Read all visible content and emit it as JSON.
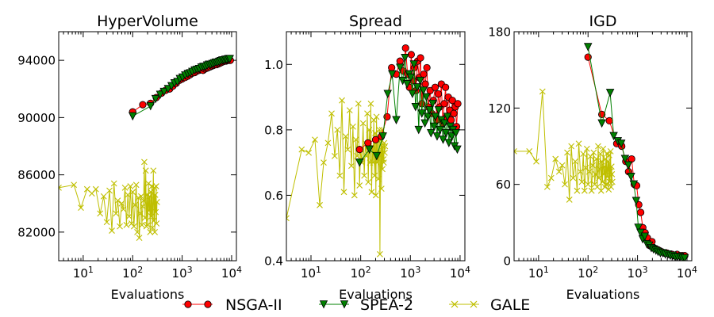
{
  "chart_data": [
    {
      "type": "line",
      "title": "HyperVolume",
      "xlabel": "Evaluations",
      "ylabel": "",
      "xscale": "log",
      "xlim": [
        3.2,
        12500
      ],
      "ylim": [
        80000,
        96000
      ],
      "xtick_exponents": [
        1,
        2,
        3,
        4
      ],
      "yticks": [
        82000,
        86000,
        90000,
        94000
      ],
      "ytick_labels": [
        "82000",
        "86000",
        "90000",
        "94000"
      ],
      "grid": false,
      "series": [
        {
          "name": "NSGA-II",
          "x": [
            100,
            160,
            230,
            300,
            380,
            460,
            560,
            650,
            760,
            880,
            1000,
            1150,
            1300,
            1450,
            1600,
            1800,
            2000,
            2200,
            2400,
            2650,
            2900,
            3150,
            3400,
            3700,
            4000,
            4300,
            4650,
            5000,
            5400,
            5800,
            6200,
            6700,
            7200,
            7700,
            8200,
            8800,
            9400
          ],
          "y": [
            90400,
            90900,
            91000,
            91400,
            91700,
            91900,
            92000,
            92200,
            92400,
            92600,
            92700,
            92800,
            92900,
            93000,
            93100,
            93150,
            93250,
            93300,
            93350,
            93300,
            93400,
            93450,
            93500,
            93550,
            93600,
            93650,
            93700,
            93700,
            93750,
            93800,
            93850,
            93900,
            93950,
            93950,
            94000,
            94000,
            94000
          ]
        },
        {
          "name": "SPEA-2",
          "x": [
            100,
            230,
            290,
            360,
            430,
            520,
            610,
            700,
            800,
            900,
            1020,
            1150,
            1300,
            1450,
            1600,
            1800,
            2000,
            2200,
            2450,
            2700,
            2950,
            3200,
            3500,
            3800,
            4100,
            4450,
            4800,
            5200,
            5600,
            6000,
            6500,
            7000,
            7500,
            8000,
            8600,
            9200
          ],
          "y": [
            90100,
            90800,
            91300,
            91600,
            91800,
            92000,
            92200,
            92400,
            92500,
            92700,
            92800,
            92950,
            93050,
            93100,
            93200,
            93300,
            93350,
            93400,
            93500,
            93550,
            93550,
            93650,
            93700,
            93700,
            93750,
            93800,
            93850,
            93850,
            93900,
            93950,
            94000,
            94000,
            94050,
            94050,
            94100,
            94100
          ]
        },
        {
          "name": "GALE",
          "x": [
            3.2,
            6.5,
            9,
            12,
            15,
            18,
            22,
            26,
            30,
            34,
            38,
            42,
            46,
            50,
            55,
            60,
            65,
            70,
            75,
            80,
            85,
            90,
            95,
            100,
            106,
            112,
            118,
            124,
            130,
            136,
            142,
            148,
            154,
            160,
            166,
            172,
            178,
            184,
            190,
            196,
            202,
            208,
            214,
            220,
            226,
            232,
            238,
            244,
            250,
            256,
            262,
            268,
            274,
            280,
            286,
            292,
            298,
            304,
            310
          ],
          "y": [
            85100,
            85300,
            83700,
            85000,
            84700,
            85000,
            83300,
            84500,
            82700,
            84900,
            82100,
            85400,
            83300,
            84200,
            82400,
            84000,
            83600,
            85100,
            82500,
            84600,
            83100,
            85200,
            82600,
            84800,
            82400,
            83900,
            85300,
            82000,
            84400,
            81600,
            83300,
            84500,
            82500,
            83800,
            84200,
            86900,
            83000,
            86300,
            82400,
            84600,
            82500,
            85400,
            83500,
            84500,
            82000,
            84800,
            83100,
            85200,
            82300,
            84000,
            86300,
            82800,
            85100,
            82000,
            84600,
            83400,
            85200,
            82600,
            84100
          ]
        }
      ]
    },
    {
      "type": "line",
      "title": "Spread",
      "xlabel": "Evaluations",
      "ylabel": "",
      "xscale": "log",
      "xlim": [
        3.2,
        12500
      ],
      "ylim": [
        0.4,
        1.1
      ],
      "xtick_exponents": [
        1,
        2,
        3,
        4
      ],
      "yticks": [
        0.4,
        0.6,
        0.8,
        1.0
      ],
      "ytick_labels": [
        "0.4",
        "0.6",
        "0.8",
        "1.0"
      ],
      "grid": false,
      "series": [
        {
          "name": "NSGA-II",
          "x": [
            95,
            140,
            200,
            260,
            340,
            420,
            520,
            620,
            720,
            800,
            880,
            960,
            1040,
            1120,
            1200,
            1300,
            1400,
            1500,
            1600,
            1700,
            1850,
            2000,
            2150,
            2300,
            2500,
            2700,
            2900,
            3150,
            3400,
            3650,
            3900,
            4200,
            4500,
            4800,
            5100,
            5400,
            5800,
            6200,
            6600,
            7000,
            7500,
            8000,
            8500,
            9000
          ],
          "y": [
            0.74,
            0.76,
            0.77,
            0.78,
            0.84,
            0.99,
            0.97,
            1.01,
            0.98,
            1.05,
            0.97,
            0.93,
            1.03,
            0.95,
            0.99,
            0.92,
            1.01,
            0.96,
            1.02,
            0.88,
            0.97,
            0.94,
            0.99,
            0.87,
            0.92,
            0.85,
            0.89,
            0.93,
            0.83,
            0.91,
            0.87,
            0.94,
            0.82,
            0.88,
            0.93,
            0.84,
            0.9,
            0.86,
            0.83,
            0.89,
            0.85,
            0.87,
            0.81,
            0.88
          ]
        },
        {
          "name": "SPEA-2",
          "x": [
            95,
            150,
            210,
            280,
            350,
            430,
            520,
            620,
            700,
            780,
            860,
            940,
            1020,
            1100,
            1180,
            1270,
            1370,
            1470,
            1580,
            1700,
            1830,
            1960,
            2100,
            2260,
            2430,
            2600,
            2800,
            3000,
            3200,
            3450,
            3700,
            3950,
            4250,
            4550,
            4850,
            5200,
            5550,
            5950,
            6350,
            6800,
            7250,
            7750,
            8250,
            8800
          ],
          "y": [
            0.7,
            0.74,
            0.72,
            0.78,
            0.91,
            0.97,
            0.83,
            0.99,
            0.95,
            1.02,
            0.94,
            0.97,
            0.96,
            0.91,
            1.0,
            0.87,
            0.93,
            0.8,
            0.95,
            0.85,
            0.92,
            0.82,
            0.9,
            0.84,
            0.86,
            0.79,
            0.88,
            0.81,
            0.84,
            0.78,
            0.86,
            0.8,
            0.83,
            0.77,
            0.82,
            0.79,
            0.84,
            0.76,
            0.81,
            0.78,
            0.8,
            0.75,
            0.79,
            0.74
          ]
        },
        {
          "name": "GALE",
          "x": [
            3.2,
            6.5,
            9,
            12,
            15,
            18,
            22,
            26,
            30,
            34,
            38,
            42,
            46,
            50,
            55,
            60,
            65,
            70,
            75,
            80,
            85,
            90,
            95,
            100,
            106,
            112,
            118,
            124,
            130,
            136,
            142,
            148,
            154,
            160,
            166,
            172,
            178,
            184,
            190,
            196,
            202,
            208,
            214,
            220,
            226,
            232,
            238,
            244,
            250,
            256,
            262,
            268,
            274,
            280,
            286,
            292,
            298,
            304,
            310
          ],
          "y": [
            0.53,
            0.74,
            0.73,
            0.77,
            0.57,
            0.7,
            0.76,
            0.85,
            0.72,
            0.8,
            0.66,
            0.89,
            0.61,
            0.78,
            0.74,
            0.86,
            0.69,
            0.81,
            0.6,
            0.77,
            0.72,
            0.88,
            0.63,
            0.74,
            0.7,
            0.82,
            0.66,
            0.76,
            0.72,
            0.85,
            0.64,
            0.8,
            0.7,
            0.88,
            0.61,
            0.75,
            0.7,
            0.83,
            0.66,
            0.79,
            0.6,
            0.84,
            0.7,
            0.77,
            0.65,
            0.73,
            0.8,
            0.42,
            0.72,
            0.77,
            0.62,
            0.8,
            0.68,
            0.75,
            0.71,
            0.7,
            0.76,
            0.73,
            0.75
          ]
        }
      ]
    },
    {
      "type": "line",
      "title": "IGD",
      "xlabel": "Evaluations",
      "ylabel": "",
      "xscale": "log",
      "xlim": [
        3.2,
        12500
      ],
      "ylim": [
        0,
        180
      ],
      "xtick_exponents": [
        1,
        2,
        3,
        4
      ],
      "yticks": [
        0,
        60,
        120,
        180
      ],
      "ytick_labels": [
        "0",
        "60",
        "120",
        "180"
      ],
      "grid": false,
      "series": [
        {
          "name": "NSGA-II",
          "x": [
            100,
            190,
            270,
            380,
            480,
            580,
            660,
            760,
            860,
            960,
            1060,
            1160,
            1280,
            1420,
            1580,
            1760,
            1960,
            2180,
            2450,
            2750,
            3100,
            3500,
            3950,
            4450,
            5000,
            5600,
            6300,
            7100,
            8000,
            9000
          ],
          "y": [
            160,
            115,
            110,
            92,
            90,
            78,
            70,
            80,
            60,
            59,
            44,
            38,
            26,
            22,
            18,
            12,
            15,
            10,
            9,
            8,
            7,
            6,
            6,
            5,
            5,
            4,
            5,
            4,
            4,
            4
          ]
        },
        {
          "name": "SPEA-2",
          "x": [
            100,
            190,
            280,
            330,
            400,
            470,
            560,
            650,
            740,
            840,
            940,
            1040,
            1150,
            1270,
            1400,
            1550,
            1720,
            1900,
            2100,
            2350,
            2600,
            2900,
            3250,
            3650,
            4100,
            4600,
            5150,
            5750,
            6450,
            7250,
            8100,
            9000
          ],
          "y": [
            168,
            108,
            132,
            98,
            94,
            92,
            80,
            75,
            66,
            60,
            47,
            26,
            22,
            17,
            19,
            13,
            12,
            10,
            9,
            8,
            7,
            6,
            6,
            5,
            5,
            4,
            4,
            3,
            3,
            3,
            2,
            2
          ]
        },
        {
          "name": "GALE",
          "x": [
            3.2,
            6.5,
            9,
            12,
            15,
            18,
            22,
            26,
            30,
            34,
            38,
            42,
            46,
            50,
            55,
            60,
            65,
            70,
            75,
            80,
            85,
            90,
            95,
            100,
            106,
            112,
            118,
            124,
            130,
            136,
            142,
            148,
            154,
            160,
            166,
            172,
            178,
            184,
            190,
            196,
            202,
            208,
            214,
            220,
            226,
            232,
            238,
            244,
            250,
            256,
            262,
            268,
            274,
            280,
            286,
            292,
            298,
            304,
            310
          ],
          "y": [
            86,
            86,
            78,
            133,
            58,
            65,
            80,
            70,
            75,
            60,
            85,
            48,
            90,
            65,
            78,
            55,
            92,
            70,
            62,
            84,
            55,
            73,
            88,
            60,
            70,
            82,
            55,
            75,
            85,
            60,
            68,
            80,
            58,
            90,
            65,
            72,
            84,
            55,
            78,
            62,
            88,
            68,
            74,
            58,
            80,
            60,
            84,
            66,
            72,
            78,
            56,
            83,
            62,
            70,
            86,
            58,
            74,
            68,
            62
          ]
        }
      ]
    }
  ],
  "legend": {
    "placement": "bottom-center",
    "entries": [
      {
        "label": "NSGA-II",
        "marker": "circle",
        "line_color": "#ff0000",
        "marker_fill": "#ff0000"
      },
      {
        "label": "SPEA-2",
        "marker": "triangle-down",
        "line_color": "#008000",
        "marker_fill": "#008000"
      },
      {
        "label": "GALE",
        "marker": "x",
        "line_color": "#bfbf00",
        "marker_fill": "#bfbf00"
      }
    ]
  },
  "colors": {
    "nsga2_line": "#ff0000",
    "spea2_line": "#008000",
    "gale_line": "#bfbf00",
    "axis": "#000000",
    "background": "#ffffff"
  }
}
